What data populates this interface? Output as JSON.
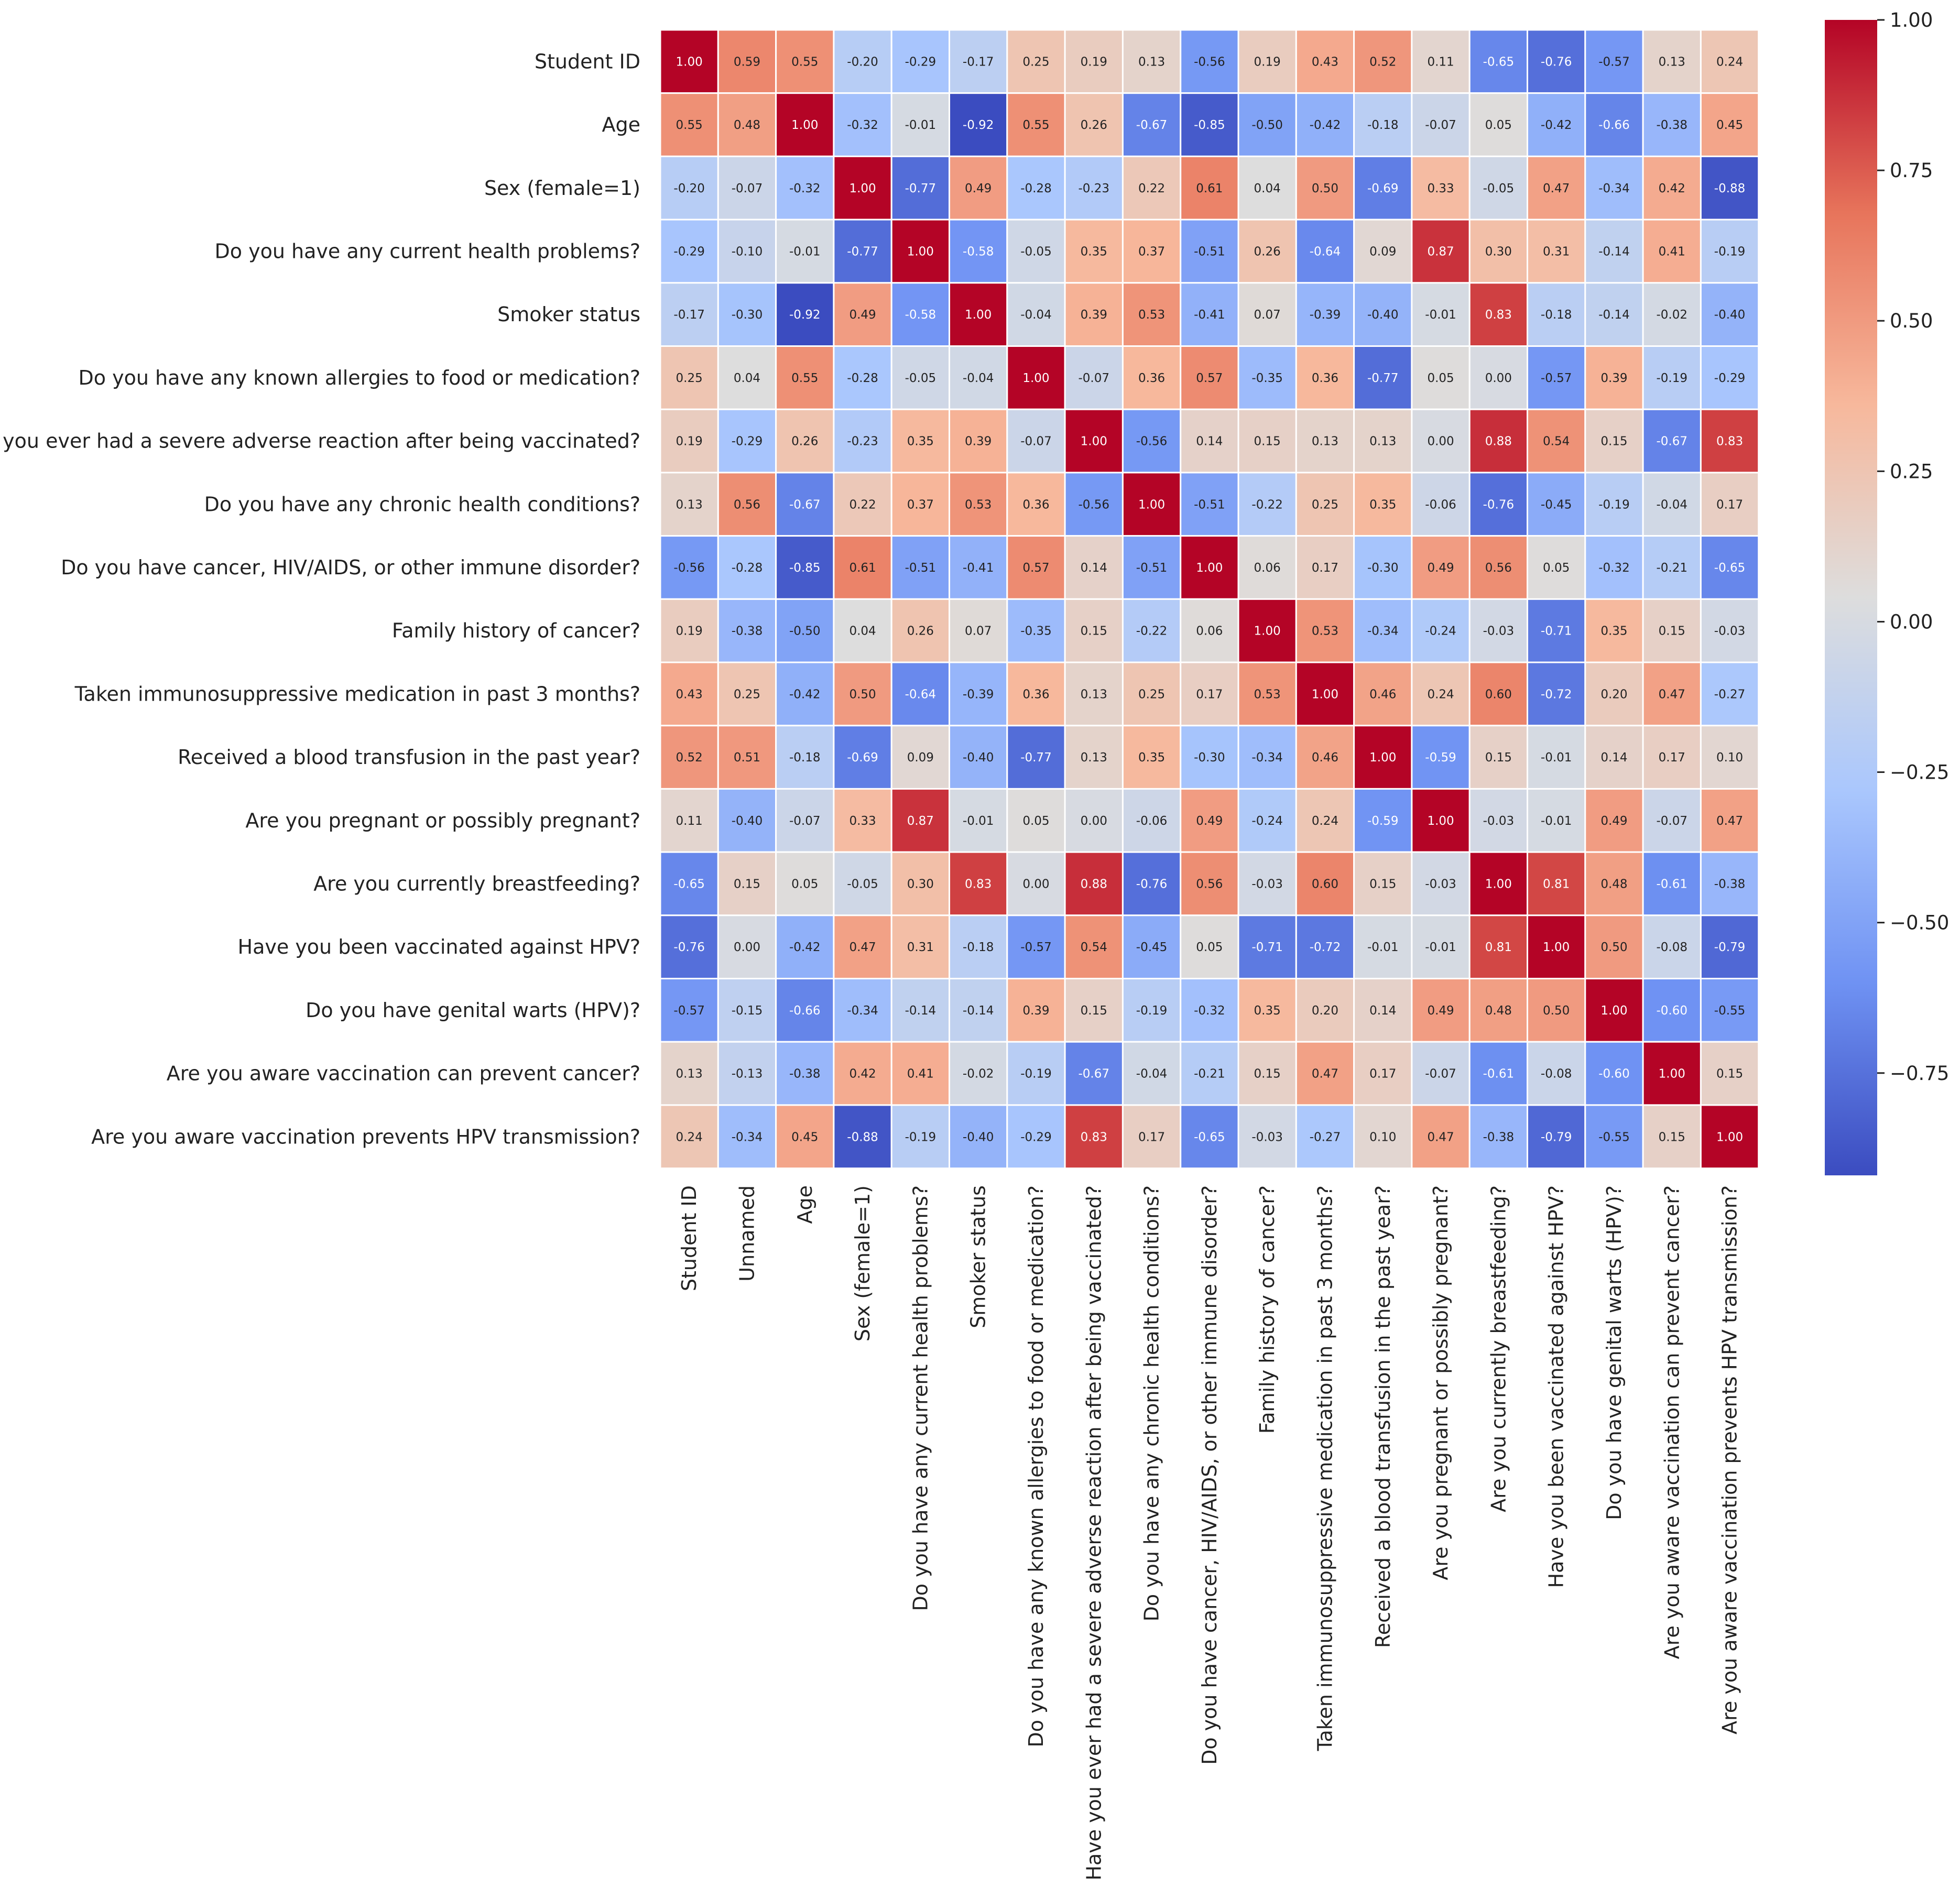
{
  "chart_data": {
    "type": "heatmap",
    "title": "",
    "colormap": "coolwarm",
    "colormap_stops": [
      "#3b4cc0",
      "#6f92f3",
      "#aac7fd",
      "#dddddd",
      "#f7b89c",
      "#e7745b",
      "#b40426"
    ],
    "row_labels": [
      "Student ID",
      "Age",
      "Sex (female=1)",
      "Do you have any current health problems?",
      "Smoker status",
      "Do you have any known allergies to food or medication?",
      "Have you ever had a severe adverse reaction after being vaccinated?",
      "Do you have any chronic health conditions?",
      "Do you have cancer, HIV/AIDS, or other immune disorder?",
      "Family history of cancer?",
      "Taken immunosuppressive medication in past 3 months?",
      "Received a blood transfusion in the past year?",
      "Are you pregnant or possibly pregnant?",
      "Are you currently breastfeeding?",
      "Have you been vaccinated against HPV?",
      "Do you have genital warts (HPV)?",
      "Are you aware vaccination can prevent cancer?",
      "Are you aware vaccination prevents HPV transmission?"
    ],
    "col_labels": [
      "Student ID",
      "Unnamed",
      "Age",
      "Sex (female=1)",
      "Do you have any current health problems?",
      "Smoker status",
      "Do you have any known allergies to food or medication?",
      "Have you ever had a severe adverse reaction after being vaccinated?",
      "Do you have any chronic health conditions?",
      "Do you have cancer, HIV/AIDS, or other immune disorder?",
      "Family history of cancer?",
      "Taken immunosuppressive medication in past 3 months?",
      "Received a blood transfusion in the past year?",
      "Are you pregnant or possibly pregnant?",
      "Are you currently breastfeeding?",
      "Have you been vaccinated against HPV?",
      "Do you have genital warts (HPV)?",
      "Are you aware vaccination can prevent cancer?",
      "Are you aware vaccination prevents HPV transmission?"
    ],
    "values": [
      [
        1.0,
        0.59,
        0.55,
        -0.2,
        -0.29,
        -0.17,
        0.25,
        0.19,
        0.13,
        -0.56,
        0.19,
        0.43,
        0.52,
        0.11,
        -0.65,
        -0.76,
        -0.57,
        0.13,
        0.24
      ],
      [
        0.55,
        0.48,
        1.0,
        -0.32,
        -0.01,
        -0.92,
        0.55,
        0.26,
        -0.67,
        -0.85,
        -0.5,
        -0.42,
        -0.18,
        -0.07,
        0.05,
        -0.42,
        -0.66,
        -0.38,
        0.45
      ],
      [
        -0.2,
        -0.07,
        -0.32,
        1.0,
        -0.77,
        0.49,
        -0.28,
        -0.23,
        0.22,
        0.61,
        0.04,
        0.5,
        -0.69,
        0.33,
        -0.05,
        0.47,
        -0.34,
        0.42,
        -0.88
      ],
      [
        -0.29,
        -0.1,
        -0.01,
        -0.77,
        1.0,
        -0.58,
        -0.05,
        0.35,
        0.37,
        -0.51,
        0.26,
        -0.64,
        0.09,
        0.87,
        0.3,
        0.31,
        -0.14,
        0.41,
        -0.19
      ],
      [
        -0.17,
        -0.3,
        -0.92,
        0.49,
        -0.58,
        1.0,
        -0.04,
        0.39,
        0.53,
        -0.41,
        0.07,
        -0.39,
        -0.4,
        -0.01,
        0.83,
        -0.18,
        -0.14,
        -0.02,
        -0.4
      ],
      [
        0.25,
        0.04,
        0.55,
        -0.28,
        -0.05,
        -0.04,
        1.0,
        -0.07,
        0.36,
        0.57,
        -0.35,
        0.36,
        -0.77,
        0.05,
        -0.0,
        -0.57,
        0.39,
        -0.19,
        -0.29
      ],
      [
        0.19,
        -0.29,
        0.26,
        -0.23,
        0.35,
        0.39,
        -0.07,
        1.0,
        -0.56,
        0.14,
        0.15,
        0.13,
        0.13,
        0.0,
        0.88,
        0.54,
        0.15,
        -0.67,
        0.83
      ],
      [
        0.13,
        0.56,
        -0.67,
        0.22,
        0.37,
        0.53,
        0.36,
        -0.56,
        1.0,
        -0.51,
        -0.22,
        0.25,
        0.35,
        -0.06,
        -0.76,
        -0.45,
        -0.19,
        -0.04,
        0.17
      ],
      [
        -0.56,
        -0.28,
        -0.85,
        0.61,
        -0.51,
        -0.41,
        0.57,
        0.14,
        -0.51,
        1.0,
        0.06,
        0.17,
        -0.3,
        0.49,
        0.56,
        0.05,
        -0.32,
        -0.21,
        -0.65
      ],
      [
        0.19,
        -0.38,
        -0.5,
        0.04,
        0.26,
        0.07,
        -0.35,
        0.15,
        -0.22,
        0.06,
        1.0,
        0.53,
        -0.34,
        -0.24,
        -0.03,
        -0.71,
        0.35,
        0.15,
        -0.03
      ],
      [
        0.43,
        0.25,
        -0.42,
        0.5,
        -0.64,
        -0.39,
        0.36,
        0.13,
        0.25,
        0.17,
        0.53,
        1.0,
        0.46,
        0.24,
        0.6,
        -0.72,
        0.2,
        0.47,
        -0.27
      ],
      [
        0.52,
        0.51,
        -0.18,
        -0.69,
        0.09,
        -0.4,
        -0.77,
        0.13,
        0.35,
        -0.3,
        -0.34,
        0.46,
        1.0,
        -0.59,
        0.15,
        -0.01,
        0.14,
        0.17,
        0.1
      ],
      [
        0.11,
        -0.4,
        -0.07,
        0.33,
        0.87,
        -0.01,
        0.05,
        0.0,
        -0.06,
        0.49,
        -0.24,
        0.24,
        -0.59,
        1.0,
        -0.03,
        -0.01,
        0.49,
        -0.07,
        0.47
      ],
      [
        -0.65,
        0.15,
        0.05,
        -0.05,
        0.3,
        0.83,
        -0.0,
        0.88,
        -0.76,
        0.56,
        -0.03,
        0.6,
        0.15,
        -0.03,
        1.0,
        0.81,
        0.48,
        -0.61,
        -0.38
      ],
      [
        -0.76,
        0.0,
        -0.42,
        0.47,
        0.31,
        -0.18,
        -0.57,
        0.54,
        -0.45,
        0.05,
        -0.71,
        -0.72,
        -0.01,
        -0.01,
        0.81,
        1.0,
        0.5,
        -0.08,
        -0.79
      ],
      [
        -0.57,
        -0.15,
        -0.66,
        -0.34,
        -0.14,
        -0.14,
        0.39,
        0.15,
        -0.19,
        -0.32,
        0.35,
        0.2,
        0.14,
        0.49,
        0.48,
        0.5,
        1.0,
        -0.6,
        -0.55
      ],
      [
        0.13,
        -0.13,
        -0.38,
        0.42,
        0.41,
        -0.02,
        -0.19,
        -0.67,
        -0.04,
        -0.21,
        0.15,
        0.47,
        0.17,
        -0.07,
        -0.61,
        -0.08,
        -0.6,
        1.0,
        0.15
      ],
      [
        0.24,
        -0.34,
        0.45,
        -0.88,
        -0.19,
        -0.4,
        -0.29,
        0.83,
        0.17,
        -0.65,
        -0.03,
        -0.27,
        0.1,
        0.47,
        -0.38,
        -0.79,
        -0.55,
        0.15,
        1.0
      ]
    ],
    "value_format": "2dp",
    "colorbar": {
      "range": [
        -0.92,
        1.0
      ],
      "ticks": [
        1.0,
        0.75,
        0.5,
        0.25,
        0.0,
        -0.25,
        -0.5,
        -0.75
      ],
      "tick_labels": [
        "1.00",
        "0.75",
        "0.50",
        "0.25",
        "0.00",
        "−0.25",
        "−0.50",
        "−0.75"
      ]
    },
    "grid": false,
    "cell_separators": "white"
  }
}
